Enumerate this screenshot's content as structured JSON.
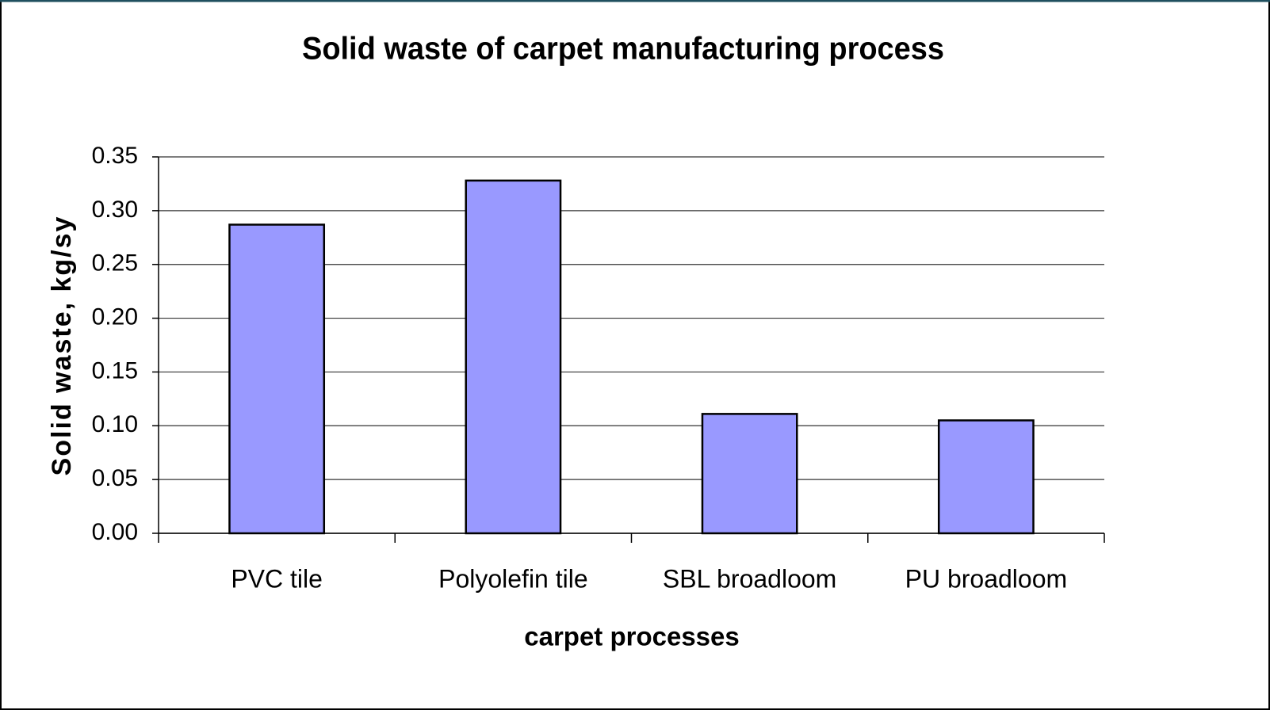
{
  "chart_data": {
    "type": "bar",
    "title": "Solid waste of carpet manufacturing process",
    "x_label": "carpet processes",
    "y_label": "Solid waste, kg/sy",
    "categories": [
      "PVC tile",
      "Polyolefin tile",
      "SBL broadloom",
      "PU broadloom"
    ],
    "values": [
      0.287,
      0.328,
      0.111,
      0.105
    ],
    "color": "#9999ff",
    "ylim": [
      0,
      0.35
    ],
    "yticks": [
      {
        "value": 0,
        "label": "0.00"
      },
      0.05,
      {
        "value": 0.1,
        "label": "0.10"
      },
      0.15,
      {
        "value": 0.2,
        "label": "0.20"
      },
      0.25,
      {
        "value": 0.3,
        "label": "0.30"
      },
      0.35
    ],
    "grid": true
  }
}
